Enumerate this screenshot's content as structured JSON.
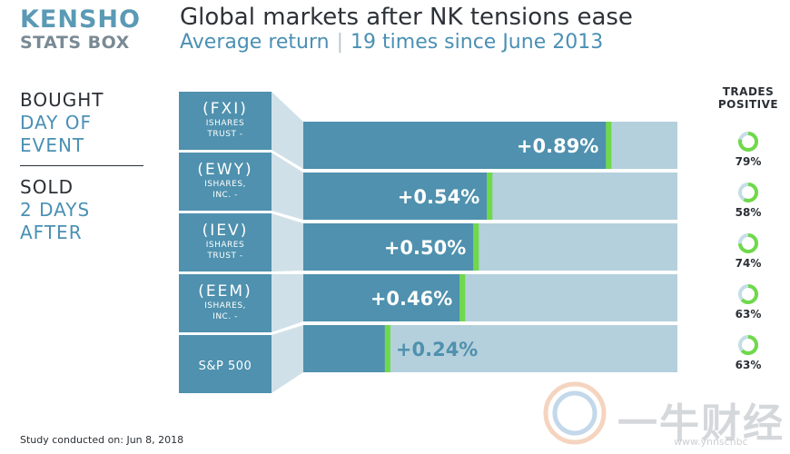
{
  "brand": {
    "line1": "KENSHO",
    "line2": "STATS BOX"
  },
  "header": {
    "title": "Global markets after NK tensions ease",
    "subtitle_left": "Average return",
    "subtitle_sep": "|",
    "subtitle_right": "19 times since June 2013"
  },
  "sidebar": {
    "bought": {
      "l1": "BOUGHT",
      "l2": "DAY OF",
      "l3": "EVENT"
    },
    "sold": {
      "l1": "SOLD",
      "l2": "2 DAYS",
      "l3": "AFTER"
    }
  },
  "trades_positive": {
    "label1": "TRADES",
    "label2": "POSITIVE"
  },
  "footer": "Study conducted on: Jun 8, 2018",
  "watermark": {
    "text": "一牛财经",
    "url": "www.ynnscnbc"
  },
  "colors": {
    "bar": "#4f91ae",
    "track": "#b4d0dc",
    "marker": "#6fd94a",
    "ring": "#6fd94a",
    "ring_bg": "#c6dde6"
  },
  "chart_data": {
    "type": "bar",
    "orientation": "horizontal",
    "title": "Global markets after NK tensions ease",
    "subtitle": "Average return | 19 times since June 2013",
    "categories": [
      "(FXI)",
      "(EWY)",
      "(IEV)",
      "(EEM)",
      "S&P 500"
    ],
    "category_sublabels": [
      [
        "ISHARES",
        "TRUST -"
      ],
      [
        "ISHARES,",
        "INC. -"
      ],
      [
        "ISHARES",
        "TRUST -"
      ],
      [
        "ISHARES,",
        "INC. -"
      ],
      []
    ],
    "values": [
      0.89,
      0.54,
      0.5,
      0.46,
      0.24
    ],
    "value_labels": [
      "+0.89%",
      "+0.54%",
      "+0.50%",
      "+0.46%",
      "+0.24%"
    ],
    "xlim": [
      0,
      1.1
    ],
    "trades_positive_pct": [
      79,
      58,
      74,
      63,
      63
    ],
    "trades_positive_labels": [
      "79%",
      "58%",
      "74%",
      "63%",
      "63%"
    ]
  }
}
